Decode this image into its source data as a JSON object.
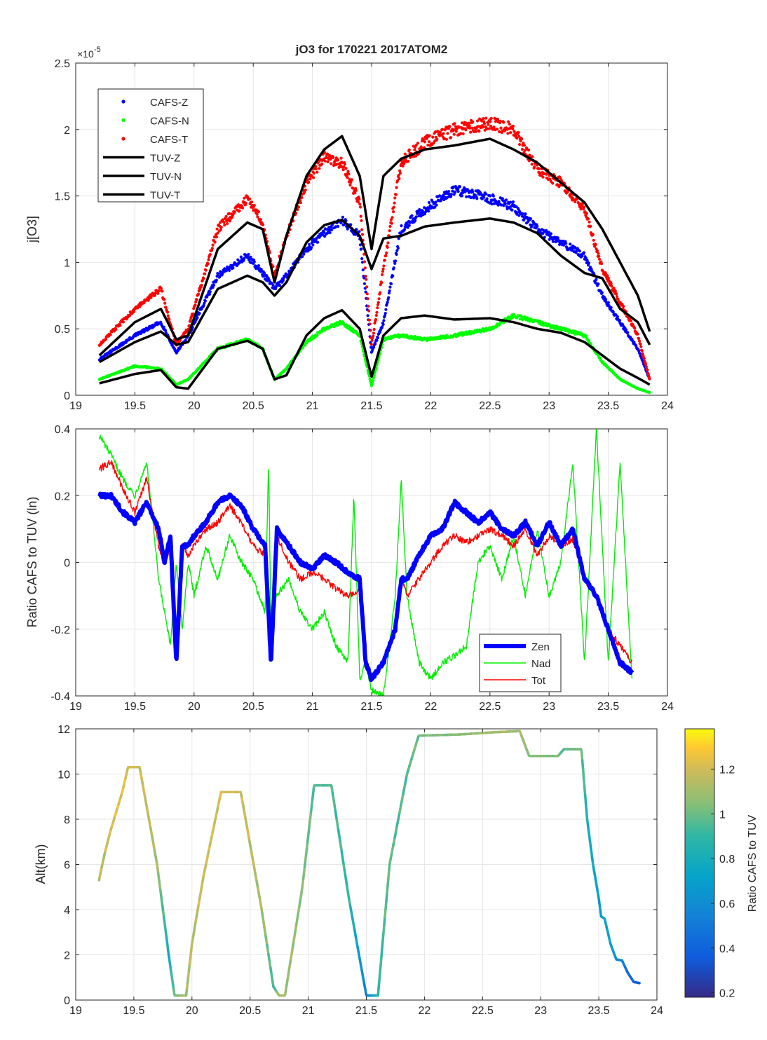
{
  "figure": {
    "title": "jO3 for 170221 2017ATOM2"
  },
  "chart_data": [
    {
      "type": "scatter",
      "title": "jO3 for 170221 2017ATOM2",
      "xlabel": "",
      "ylabel": "j[O3]",
      "xlim": [
        19,
        24
      ],
      "ylim": [
        0,
        2.5
      ],
      "exponent_label": "×10",
      "exponent_power": "-5",
      "xticks": [
        "19",
        "19.5",
        "20",
        "20.5",
        "21",
        "21.5",
        "22",
        "22.5",
        "23",
        "23.5",
        "24"
      ],
      "yticks": [
        "0",
        "0.5",
        "1",
        "1.5",
        "2",
        "2.5"
      ],
      "grid": true,
      "legend_position": "top-left",
      "x_knots": [
        19.2,
        19.5,
        19.72,
        19.85,
        19.95,
        20.2,
        20.45,
        20.58,
        20.68,
        20.78,
        20.95,
        21.1,
        21.25,
        21.4,
        21.5,
        21.6,
        21.75,
        21.95,
        22.2,
        22.5,
        22.7,
        22.9,
        23.1,
        23.3,
        23.45,
        23.6,
        23.75,
        23.85
      ],
      "series": [
        {
          "name": "CAFS-Z",
          "style": "dots",
          "color": "#0000ff",
          "values": [
            0.27,
            0.45,
            0.55,
            0.32,
            0.45,
            0.9,
            1.05,
            0.92,
            0.8,
            0.9,
            1.1,
            1.22,
            1.32,
            1.2,
            0.32,
            0.55,
            1.25,
            1.4,
            1.55,
            1.48,
            1.42,
            1.25,
            1.15,
            1.05,
            0.75,
            0.55,
            0.35,
            0.12
          ]
        },
        {
          "name": "CAFS-N",
          "style": "dots",
          "color": "#00ff00",
          "values": [
            0.12,
            0.22,
            0.2,
            0.08,
            0.12,
            0.35,
            0.42,
            0.35,
            0.12,
            0.2,
            0.4,
            0.5,
            0.55,
            0.45,
            0.07,
            0.42,
            0.45,
            0.42,
            0.45,
            0.5,
            0.6,
            0.55,
            0.5,
            0.45,
            0.25,
            0.12,
            0.05,
            0.02
          ]
        },
        {
          "name": "CAFS-T",
          "style": "dots",
          "color": "#ff0000",
          "values": [
            0.38,
            0.65,
            0.8,
            0.38,
            0.5,
            1.25,
            1.48,
            1.3,
            0.9,
            1.2,
            1.6,
            1.8,
            1.75,
            1.45,
            0.38,
            0.95,
            1.75,
            1.9,
            2.0,
            2.05,
            2.0,
            1.7,
            1.6,
            1.4,
            0.95,
            0.7,
            0.45,
            0.12
          ]
        },
        {
          "name": "TUV-Z",
          "style": "line",
          "color": "#000000",
          "values": [
            0.25,
            0.4,
            0.48,
            0.38,
            0.4,
            0.8,
            0.9,
            0.85,
            0.75,
            0.85,
            1.15,
            1.28,
            1.32,
            1.2,
            0.95,
            1.18,
            1.2,
            1.27,
            1.3,
            1.33,
            1.3,
            1.22,
            1.05,
            0.92,
            0.88,
            0.65,
            0.55,
            0.38
          ]
        },
        {
          "name": "TUV-N",
          "style": "line",
          "color": "#000000",
          "values": [
            0.09,
            0.16,
            0.19,
            0.06,
            0.05,
            0.35,
            0.41,
            0.35,
            0.12,
            0.15,
            0.45,
            0.58,
            0.64,
            0.5,
            0.14,
            0.45,
            0.58,
            0.6,
            0.57,
            0.58,
            0.55,
            0.5,
            0.47,
            0.4,
            0.3,
            0.2,
            0.13,
            0.08
          ]
        },
        {
          "name": "TUV-T",
          "style": "line",
          "color": "#000000",
          "values": [
            0.3,
            0.55,
            0.65,
            0.42,
            0.45,
            1.1,
            1.3,
            1.25,
            0.85,
            1.2,
            1.65,
            1.85,
            1.95,
            1.65,
            1.1,
            1.65,
            1.78,
            1.85,
            1.88,
            1.93,
            1.85,
            1.75,
            1.6,
            1.45,
            1.25,
            1.0,
            0.75,
            0.48
          ]
        }
      ]
    },
    {
      "type": "line",
      "title": "",
      "xlabel": "",
      "ylabel": "Ratio CAFS to TUV (ln)",
      "xlim": [
        19,
        24
      ],
      "ylim": [
        -0.4,
        0.4
      ],
      "xticks": [
        "19",
        "19.5",
        "20",
        "20.5",
        "21",
        "21.5",
        "22",
        "22.5",
        "23",
        "23.5",
        "24"
      ],
      "yticks": [
        "-0.4",
        "-0.2",
        "0",
        "0.2",
        "0.4"
      ],
      "grid": true,
      "legend_position": "bottom-right",
      "series": [
        {
          "name": "Zen",
          "color": "#0000ff",
          "width": 6,
          "x": [
            19.2,
            19.3,
            19.4,
            19.5,
            19.6,
            19.7,
            19.75,
            19.8,
            19.85,
            19.9,
            19.95,
            20.0,
            20.1,
            20.2,
            20.3,
            20.4,
            20.5,
            20.6,
            20.65,
            20.7,
            20.8,
            20.9,
            21.0,
            21.1,
            21.2,
            21.3,
            21.4,
            21.45,
            21.5,
            21.6,
            21.7,
            21.75,
            21.8,
            21.9,
            22.0,
            22.1,
            22.2,
            22.3,
            22.4,
            22.5,
            22.6,
            22.7,
            22.8,
            22.9,
            23.0,
            23.1,
            23.2,
            23.3,
            23.4,
            23.5,
            23.6,
            23.7
          ],
          "values": [
            0.2,
            0.2,
            0.15,
            0.12,
            0.18,
            0.1,
            0.0,
            0.08,
            -0.3,
            0.05,
            0.05,
            0.08,
            0.12,
            0.18,
            0.2,
            0.17,
            0.1,
            0.05,
            -0.3,
            0.1,
            0.05,
            0.0,
            -0.02,
            0.02,
            0.0,
            -0.03,
            -0.05,
            -0.3,
            -0.35,
            -0.3,
            -0.2,
            -0.05,
            -0.05,
            0.02,
            0.08,
            0.1,
            0.18,
            0.15,
            0.12,
            0.15,
            0.1,
            0.08,
            0.12,
            0.05,
            0.12,
            0.05,
            0.1,
            -0.05,
            -0.1,
            -0.2,
            -0.3,
            -0.33
          ]
        },
        {
          "name": "Nad",
          "color": "#00ee00",
          "width": 1.4,
          "x": [
            19.2,
            19.3,
            19.4,
            19.5,
            19.6,
            19.7,
            19.75,
            19.8,
            19.85,
            19.9,
            19.95,
            20.0,
            20.1,
            20.2,
            20.3,
            20.4,
            20.5,
            20.6,
            20.63,
            20.65,
            20.7,
            20.8,
            20.9,
            21.0,
            21.1,
            21.2,
            21.3,
            21.35,
            21.4,
            21.45,
            21.5,
            21.6,
            21.7,
            21.75,
            21.8,
            21.9,
            22.0,
            22.1,
            22.2,
            22.3,
            22.4,
            22.5,
            22.6,
            22.7,
            22.8,
            22.9,
            23.0,
            23.1,
            23.2,
            23.3,
            23.4,
            23.5,
            23.6,
            23.7
          ],
          "values": [
            0.38,
            0.32,
            0.25,
            0.2,
            0.3,
            -0.05,
            -0.15,
            -0.25,
            0.0,
            -0.2,
            0.0,
            -0.1,
            0.05,
            -0.05,
            0.08,
            0.0,
            -0.05,
            -0.15,
            0.3,
            -0.2,
            -0.1,
            -0.05,
            -0.15,
            -0.2,
            -0.15,
            -0.25,
            -0.3,
            0.2,
            -0.35,
            -0.3,
            -0.38,
            -0.4,
            -0.1,
            0.25,
            -0.1,
            -0.3,
            -0.35,
            -0.3,
            -0.28,
            -0.25,
            0.0,
            0.05,
            -0.05,
            0.08,
            -0.1,
            0.1,
            -0.1,
            0.0,
            0.3,
            -0.3,
            0.4,
            -0.3,
            0.3,
            -0.35
          ]
        },
        {
          "name": "Tot",
          "color": "#ff0000",
          "width": 1.4,
          "x": [
            19.2,
            19.3,
            19.4,
            19.5,
            19.6,
            19.7,
            19.75,
            19.8,
            19.85,
            19.9,
            19.95,
            20.0,
            20.1,
            20.2,
            20.3,
            20.4,
            20.5,
            20.6,
            20.65,
            20.7,
            20.8,
            20.9,
            21.0,
            21.1,
            21.2,
            21.3,
            21.4,
            21.45,
            21.5,
            21.6,
            21.7,
            21.75,
            21.8,
            21.9,
            22.0,
            22.1,
            22.2,
            22.3,
            22.4,
            22.5,
            22.6,
            22.7,
            22.8,
            22.9,
            23.0,
            23.1,
            23.2,
            23.3,
            23.4,
            23.5,
            23.6,
            23.7
          ],
          "values": [
            0.28,
            0.3,
            0.22,
            0.15,
            0.25,
            0.05,
            0.0,
            0.05,
            -0.3,
            0.05,
            0.02,
            0.05,
            0.1,
            0.12,
            0.17,
            0.12,
            0.05,
            0.02,
            -0.3,
            0.08,
            0.0,
            -0.05,
            -0.03,
            -0.05,
            -0.08,
            -0.1,
            -0.08,
            -0.3,
            -0.35,
            -0.3,
            -0.2,
            -0.05,
            -0.1,
            -0.05,
            0.0,
            0.05,
            0.08,
            0.06,
            0.08,
            0.1,
            0.08,
            0.05,
            0.1,
            0.02,
            0.08,
            0.05,
            0.07,
            -0.05,
            -0.1,
            -0.2,
            -0.25,
            -0.3
          ]
        }
      ]
    },
    {
      "type": "line",
      "title": "",
      "xlabel": "",
      "ylabel": "Alt(km)",
      "xlim": [
        19,
        24
      ],
      "ylim": [
        0,
        12
      ],
      "xticks": [
        "19",
        "19.5",
        "20",
        "20.5",
        "21",
        "21.5",
        "22",
        "22.5",
        "23",
        "23.5",
        "24"
      ],
      "yticks": [
        "0",
        "2",
        "4",
        "6",
        "8",
        "10",
        "12"
      ],
      "grid": true,
      "color_variable": "Ratio CAFS to TUV",
      "x": [
        19.2,
        19.25,
        19.3,
        19.4,
        19.45,
        19.55,
        19.7,
        19.8,
        19.85,
        19.95,
        20.0,
        20.1,
        20.25,
        20.42,
        20.6,
        20.7,
        20.75,
        20.8,
        20.95,
        21.05,
        21.2,
        21.35,
        21.5,
        21.6,
        21.7,
        21.85,
        21.95,
        22.3,
        22.6,
        22.82,
        22.9,
        23.15,
        23.2,
        23.25,
        23.35,
        23.4,
        23.45,
        23.5,
        23.52,
        23.55,
        23.6,
        23.65,
        23.7,
        23.75,
        23.8,
        23.85
      ],
      "values": [
        5.3,
        6.5,
        7.5,
        9.2,
        10.3,
        10.3,
        6.0,
        2.0,
        0.2,
        0.2,
        2.5,
        5.5,
        9.2,
        9.2,
        4.0,
        0.6,
        0.2,
        0.2,
        5.0,
        9.5,
        9.5,
        4.5,
        0.2,
        0.2,
        6.0,
        10.0,
        11.7,
        11.75,
        11.85,
        11.9,
        10.8,
        10.8,
        11.1,
        11.1,
        11.1,
        8.0,
        6.0,
        4.5,
        3.7,
        3.6,
        2.5,
        1.8,
        1.75,
        1.2,
        0.8,
        0.75
      ],
      "color_values": [
        1.15,
        1.15,
        1.2,
        1.25,
        1.2,
        1.2,
        1.1,
        0.8,
        1.0,
        1.1,
        1.15,
        1.2,
        1.2,
        1.2,
        1.1,
        0.9,
        1.1,
        1.1,
        1.05,
        0.95,
        0.95,
        0.9,
        0.5,
        0.9,
        1.0,
        0.95,
        1.0,
        1.05,
        1.1,
        1.1,
        1.05,
        1.05,
        0.95,
        1.0,
        1.0,
        0.8,
        0.75,
        0.7,
        0.7,
        0.75,
        0.7,
        0.6,
        0.55,
        0.45,
        0.4,
        0.35
      ],
      "colorbar": {
        "label": "Ratio CAFS to TUV",
        "range": [
          0.18,
          1.38
        ],
        "ticks": [
          "0.2",
          "0.4",
          "0.6",
          "0.8",
          "1",
          "1.2"
        ]
      }
    }
  ]
}
